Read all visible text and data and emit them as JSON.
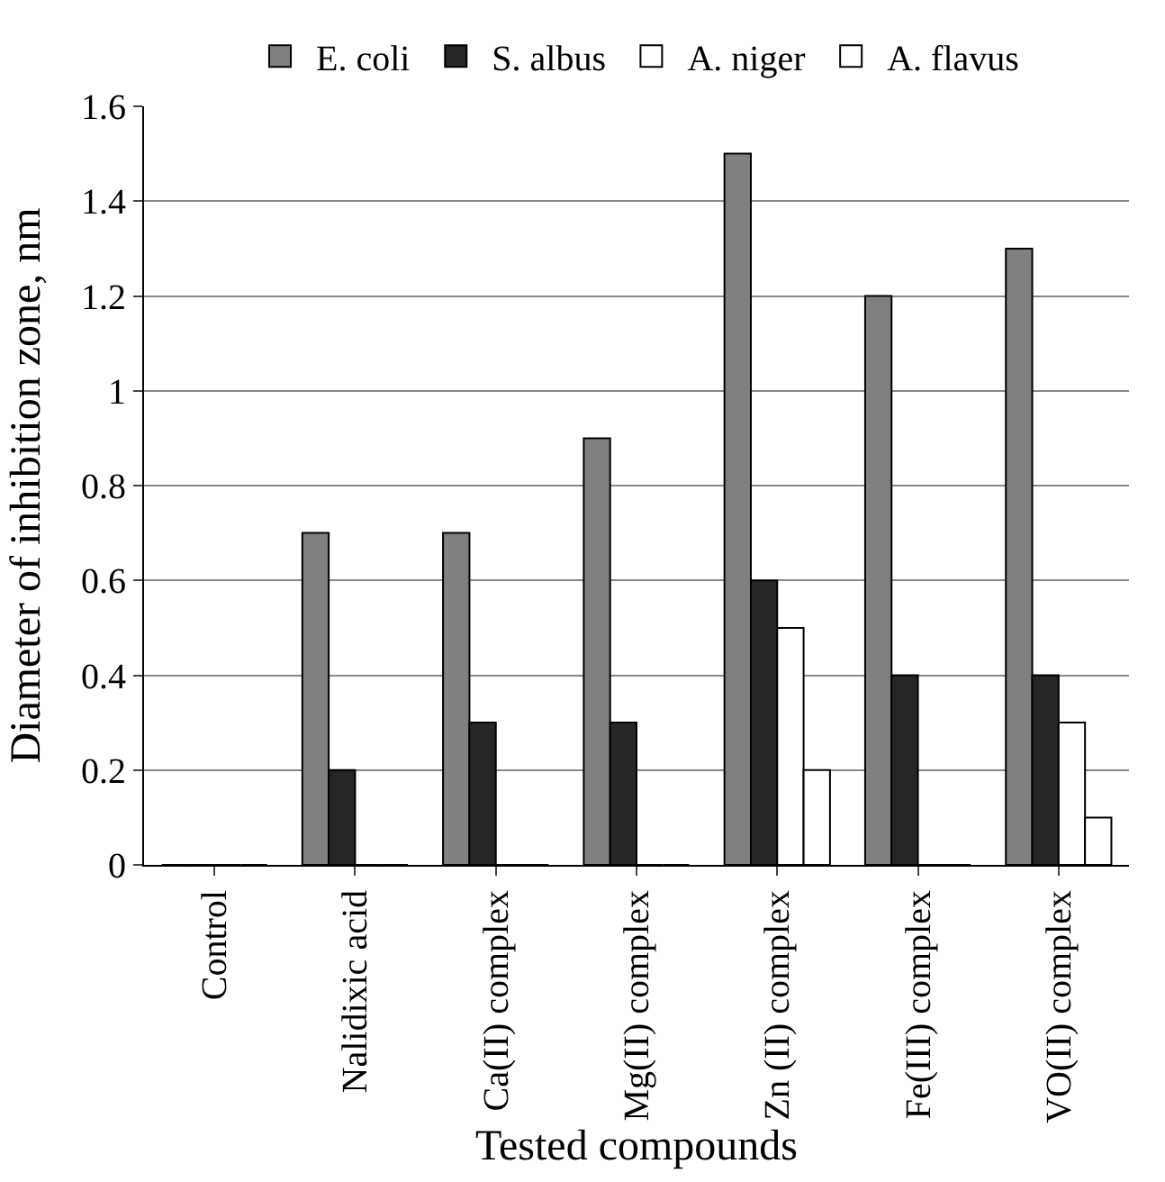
{
  "chart_data": {
    "type": "bar",
    "xlabel": "Tested compounds",
    "ylabel": "Diameter of inhibition zone, nm",
    "categories": [
      "Control",
      "Nalidixic acid",
      "Ca(II) complex",
      "Mg(II) complex",
      "Zn (II) complex",
      "Fe(III) complex",
      "VO(II) complex"
    ],
    "series": [
      {
        "name": "E. coli",
        "color": "#808080",
        "values": [
          0,
          0.7,
          0.7,
          0.9,
          1.5,
          1.2,
          1.3
        ]
      },
      {
        "name": "S. albus",
        "color": "#262626",
        "values": [
          0,
          0.2,
          0.3,
          0.3,
          0.6,
          0.4,
          0.4
        ]
      },
      {
        "name": "A. niger",
        "color": "#ffffff",
        "values": [
          0,
          0,
          0,
          0,
          0.5,
          0,
          0.3
        ]
      },
      {
        "name": "A. flavus",
        "color": "#ffffff",
        "values": [
          0,
          0,
          0,
          0,
          0.2,
          0,
          0.1
        ]
      }
    ],
    "ylim": [
      0,
      1.6
    ],
    "yticks": [
      0,
      0.2,
      0.4,
      0.6,
      0.8,
      1,
      1.2,
      1.4,
      1.6
    ],
    "grid": "y",
    "legend": "top"
  }
}
